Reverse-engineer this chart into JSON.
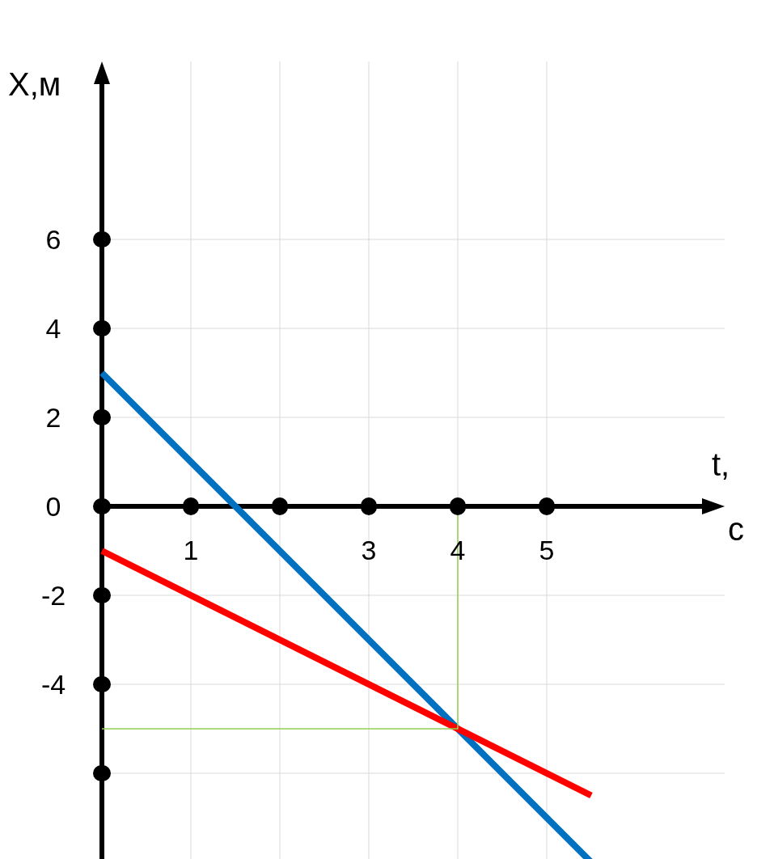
{
  "chart_data": {
    "type": "line",
    "xlabel": "t, с",
    "ylabel": "X,м",
    "xlim": [
      0,
      7
    ],
    "ylim": [
      -8.3,
      10
    ],
    "xticks": [
      1,
      {
        "value": 2,
        "label": null
      },
      3,
      4,
      5
    ],
    "yticks": [
      {
        "value": -6,
        "label": null
      },
      -4,
      -2,
      0,
      2,
      4,
      6
    ],
    "grid": true,
    "series": [
      {
        "color": "#0070c0",
        "x": [
          0,
          5.6
        ],
        "values": [
          3,
          -8.2
        ]
      },
      {
        "color": "#ff0000",
        "x": [
          0,
          5.5
        ],
        "values": [
          -1,
          -6.5
        ]
      },
      {
        "color": "#92d050",
        "x": [
          4,
          4,
          0
        ],
        "values": [
          0,
          -5,
          -5
        ]
      }
    ]
  }
}
